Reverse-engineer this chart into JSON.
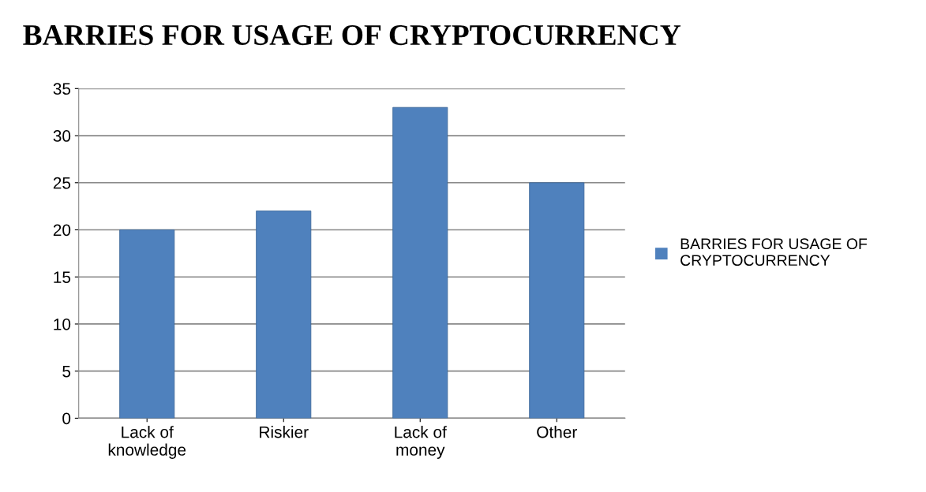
{
  "chart_data": {
    "type": "bar",
    "title": "BARRIES FOR USAGE OF CRYPTOCURRENCY",
    "categories": [
      "Lack of\nknowledge",
      "Riskier",
      "Lack of\nmoney",
      "Other"
    ],
    "series": [
      {
        "name": "BARRIES FOR USAGE OF\nCRYPTOCURRENCY",
        "color": "#4f81bd",
        "values": [
          20,
          22,
          33,
          25
        ]
      }
    ],
    "ylim": [
      0,
      35
    ],
    "yticks": [
      0,
      5,
      10,
      15,
      20,
      25,
      30,
      35
    ],
    "grid": "y",
    "legend": "right"
  }
}
